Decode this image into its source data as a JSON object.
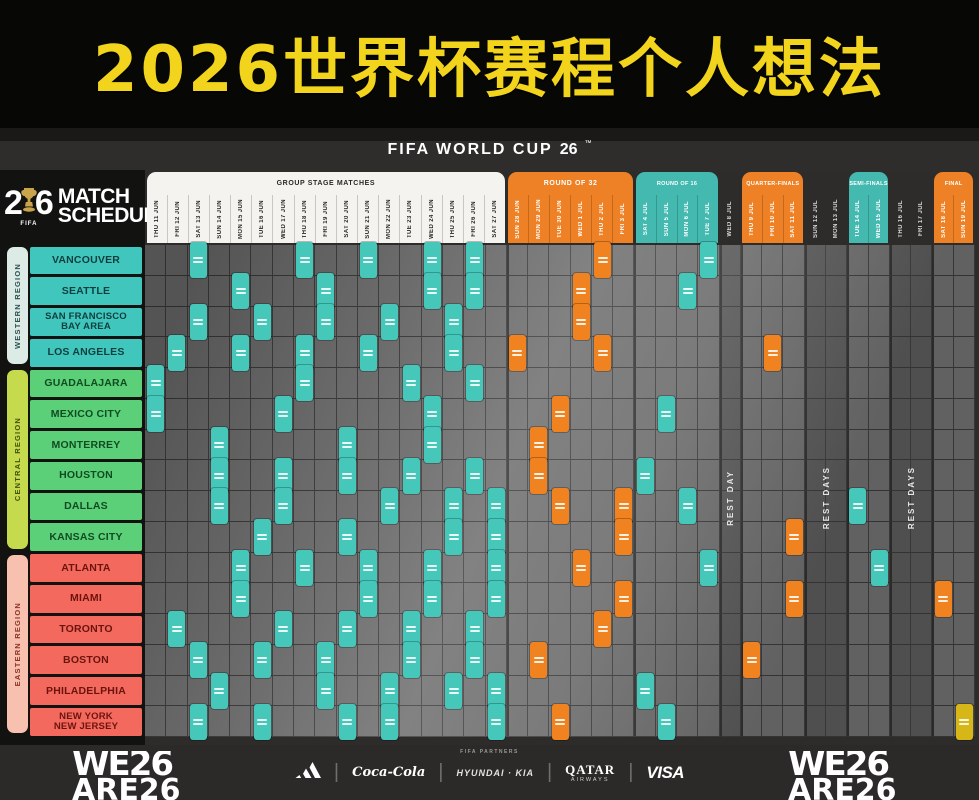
{
  "title": "2026世界杯赛程个人想法",
  "brand_bar": {
    "text": "FIFA WORLD CUP",
    "mark": "26",
    "tm": "™"
  },
  "sidebar_logo": {
    "digit_left": "2",
    "digit_right": "6",
    "fifa": "FIFA",
    "line1": "MATCH",
    "line2": "SCHEDULE"
  },
  "footer": {
    "partners_label": "FIFA PARTNERS",
    "we_left": "WE26",
    "we_left_sub": "ARE26",
    "we_right": "WE26",
    "we_right_sub": "ARE26",
    "sponsors": {
      "adidas": "adidas",
      "coke": "Coca-Cola",
      "hyundai": "HYUNDAI · KIA",
      "qatar": "QATAR",
      "qatar_sub": "AIRWAYS",
      "visa": "VISA"
    }
  },
  "chart_data": {
    "type": "table",
    "title": "2026世界杯赛程个人想法",
    "subtitle": "FIFA WORLD CUP 26 MATCH SCHEDULE",
    "grid": {
      "columns": 39,
      "rows": 16
    },
    "marker_colors": {
      "teal": "#45c7ba",
      "orange": "#f0821f",
      "gold": "#d7b717"
    },
    "phases": [
      {
        "id": "group",
        "label": "GROUP STAGE MATCHES",
        "color": "#f5f3ef",
        "text": "#2a2a2a",
        "rest": false,
        "dates": [
          "THU 11 JUN",
          "FRI 12 JUN",
          "SAT 13 JUN",
          "SUN 14 JUN",
          "MON 15 JUN",
          "TUE 16 JUN",
          "WED 17 JUN",
          "THU 18 JUN",
          "FRI 19 JUN",
          "SAT 20 JUN",
          "SUN 21 JUN",
          "MON 22 JUN",
          "TUE 23 JUN",
          "WED 24 JUN",
          "THU 25 JUN",
          "FRI 26 JUN",
          "SAT 27 JUN"
        ]
      },
      {
        "id": "r32",
        "label": "ROUND OF 32",
        "color": "#ee8125",
        "text": "#ffffff",
        "rest": false,
        "dates": [
          "SUN 28 JUN",
          "MON 29 JUN",
          "TUE 30 JUN",
          "WED 1 JUL",
          "THU 2 JUL",
          "FRI 3 JUL"
        ]
      },
      {
        "id": "r16",
        "label": "ROUND OF 16",
        "color": "#44b9b0",
        "text": "#ffffff",
        "rest": false,
        "dates": [
          "SAT 4 JUL",
          "SUN 5 JUL",
          "MON 6 JUL",
          "TUE 7 JUL"
        ]
      },
      {
        "id": "rest1",
        "label": "REST DAY",
        "color": "",
        "text": "#d8d8d8",
        "rest": true,
        "dates": [
          "WED 8 JUL"
        ]
      },
      {
        "id": "qf",
        "label": "QUARTER-FINALS",
        "color": "#ee8125",
        "text": "#ffffff",
        "rest": false,
        "dates": [
          "THU 9 JUL",
          "FRI 10 JUL",
          "SAT 11 JUL"
        ]
      },
      {
        "id": "rest2",
        "label": "REST DAYS",
        "color": "",
        "text": "#d8d8d8",
        "rest": true,
        "dates": [
          "SUN 12 JUL",
          "MON 13 JUL"
        ]
      },
      {
        "id": "sf",
        "label": "SEMI-FINALS",
        "color": "#44b9b0",
        "text": "#ffffff",
        "rest": false,
        "dates": [
          "TUE 14 JUL",
          "WED 15 JUL"
        ]
      },
      {
        "id": "rest3",
        "label": "REST DAYS",
        "color": "",
        "text": "#d8d8d8",
        "rest": true,
        "dates": [
          "THU 16 JUL",
          "FRI 17 JUL"
        ]
      },
      {
        "id": "final",
        "label": "FINAL",
        "color": "#ee8125",
        "text": "#ffffff",
        "rest": false,
        "dates": [
          "SAT 18 JUL",
          "SUN 19 JUL"
        ]
      }
    ],
    "regions": [
      {
        "name": "WESTERN REGION",
        "band_color": "#dcebe6",
        "band_text": "#2a5050",
        "city_color": "#41c6bd",
        "city_text": "#0e3f3e",
        "rows": 4
      },
      {
        "name": "CENTRAL REGION",
        "band_color": "#c6da4e",
        "band_text": "#42520a",
        "city_color": "#5bd078",
        "city_text": "#114b22",
        "rows": 6
      },
      {
        "name": "EASTERN REGION",
        "band_color": "#f8c0ae",
        "band_text": "#8a3325",
        "city_color": "#f3695e",
        "city_text": "#6b140d",
        "rows": 6
      }
    ],
    "rows": [
      {
        "city": "VANCOUVER",
        "region": 0,
        "matches": [
          {
            "col": 2,
            "color": "teal"
          },
          {
            "col": 7,
            "color": "teal"
          },
          {
            "col": 10,
            "color": "teal"
          },
          {
            "col": 13,
            "color": "teal"
          },
          {
            "col": 15,
            "color": "teal"
          },
          {
            "col": 21,
            "color": "orange"
          },
          {
            "col": 26,
            "color": "teal"
          }
        ]
      },
      {
        "city": "SEATTLE",
        "region": 0,
        "matches": [
          {
            "col": 4,
            "color": "teal"
          },
          {
            "col": 8,
            "color": "teal"
          },
          {
            "col": 13,
            "color": "teal"
          },
          {
            "col": 15,
            "color": "teal"
          },
          {
            "col": 20,
            "color": "orange"
          },
          {
            "col": 25,
            "color": "teal"
          }
        ]
      },
      {
        "city": "SAN FRANCISCO\nBAY AREA",
        "region": 0,
        "matches": [
          {
            "col": 2,
            "color": "teal"
          },
          {
            "col": 5,
            "color": "teal"
          },
          {
            "col": 8,
            "color": "teal"
          },
          {
            "col": 11,
            "color": "teal"
          },
          {
            "col": 14,
            "color": "teal"
          },
          {
            "col": 20,
            "color": "orange"
          }
        ]
      },
      {
        "city": "LOS ANGELES",
        "region": 0,
        "matches": [
          {
            "col": 1,
            "color": "teal"
          },
          {
            "col": 4,
            "color": "teal"
          },
          {
            "col": 7,
            "color": "teal"
          },
          {
            "col": 10,
            "color": "teal"
          },
          {
            "col": 14,
            "color": "teal"
          },
          {
            "col": 17,
            "color": "orange"
          },
          {
            "col": 21,
            "color": "orange"
          },
          {
            "col": 29,
            "color": "orange"
          }
        ]
      },
      {
        "city": "GUADALAJARA",
        "region": 1,
        "matches": [
          {
            "col": 0,
            "color": "teal"
          },
          {
            "col": 7,
            "color": "teal"
          },
          {
            "col": 12,
            "color": "teal"
          },
          {
            "col": 15,
            "color": "teal"
          }
        ]
      },
      {
        "city": "MEXICO CITY",
        "region": 1,
        "matches": [
          {
            "col": 0,
            "color": "teal"
          },
          {
            "col": 6,
            "color": "teal"
          },
          {
            "col": 13,
            "color": "teal"
          },
          {
            "col": 19,
            "color": "orange"
          },
          {
            "col": 24,
            "color": "teal"
          }
        ]
      },
      {
        "city": "MONTERREY",
        "region": 1,
        "matches": [
          {
            "col": 3,
            "color": "teal"
          },
          {
            "col": 9,
            "color": "teal"
          },
          {
            "col": 13,
            "color": "teal"
          },
          {
            "col": 18,
            "color": "orange"
          }
        ]
      },
      {
        "city": "HOUSTON",
        "region": 1,
        "matches": [
          {
            "col": 3,
            "color": "teal"
          },
          {
            "col": 6,
            "color": "teal"
          },
          {
            "col": 9,
            "color": "teal"
          },
          {
            "col": 12,
            "color": "teal"
          },
          {
            "col": 15,
            "color": "teal"
          },
          {
            "col": 18,
            "color": "orange"
          },
          {
            "col": 23,
            "color": "teal"
          }
        ]
      },
      {
        "city": "DALLAS",
        "region": 1,
        "matches": [
          {
            "col": 3,
            "color": "teal"
          },
          {
            "col": 6,
            "color": "teal"
          },
          {
            "col": 11,
            "color": "teal"
          },
          {
            "col": 14,
            "color": "teal"
          },
          {
            "col": 16,
            "color": "teal"
          },
          {
            "col": 19,
            "color": "orange"
          },
          {
            "col": 22,
            "color": "orange"
          },
          {
            "col": 25,
            "color": "teal"
          },
          {
            "col": 33,
            "color": "teal"
          }
        ]
      },
      {
        "city": "KANSAS CITY",
        "region": 1,
        "matches": [
          {
            "col": 5,
            "color": "teal"
          },
          {
            "col": 9,
            "color": "teal"
          },
          {
            "col": 14,
            "color": "teal"
          },
          {
            "col": 16,
            "color": "teal"
          },
          {
            "col": 22,
            "color": "orange"
          },
          {
            "col": 30,
            "color": "orange"
          }
        ]
      },
      {
        "city": "ATLANTA",
        "region": 2,
        "matches": [
          {
            "col": 4,
            "color": "teal"
          },
          {
            "col": 7,
            "color": "teal"
          },
          {
            "col": 10,
            "color": "teal"
          },
          {
            "col": 13,
            "color": "teal"
          },
          {
            "col": 16,
            "color": "teal"
          },
          {
            "col": 20,
            "color": "orange"
          },
          {
            "col": 26,
            "color": "teal"
          },
          {
            "col": 34,
            "color": "teal"
          }
        ]
      },
      {
        "city": "MIAMI",
        "region": 2,
        "matches": [
          {
            "col": 4,
            "color": "teal"
          },
          {
            "col": 10,
            "color": "teal"
          },
          {
            "col": 13,
            "color": "teal"
          },
          {
            "col": 16,
            "color": "teal"
          },
          {
            "col": 22,
            "color": "orange"
          },
          {
            "col": 30,
            "color": "orange"
          },
          {
            "col": 37,
            "color": "orange"
          }
        ]
      },
      {
        "city": "TORONTO",
        "region": 2,
        "matches": [
          {
            "col": 1,
            "color": "teal"
          },
          {
            "col": 6,
            "color": "teal"
          },
          {
            "col": 9,
            "color": "teal"
          },
          {
            "col": 12,
            "color": "teal"
          },
          {
            "col": 15,
            "color": "teal"
          },
          {
            "col": 21,
            "color": "orange"
          }
        ]
      },
      {
        "city": "BOSTON",
        "region": 2,
        "matches": [
          {
            "col": 2,
            "color": "teal"
          },
          {
            "col": 5,
            "color": "teal"
          },
          {
            "col": 8,
            "color": "teal"
          },
          {
            "col": 12,
            "color": "teal"
          },
          {
            "col": 15,
            "color": "teal"
          },
          {
            "col": 18,
            "color": "orange"
          },
          {
            "col": 28,
            "color": "orange"
          }
        ]
      },
      {
        "city": "PHILADELPHIA",
        "region": 2,
        "matches": [
          {
            "col": 3,
            "color": "teal"
          },
          {
            "col": 8,
            "color": "teal"
          },
          {
            "col": 11,
            "color": "teal"
          },
          {
            "col": 14,
            "color": "teal"
          },
          {
            "col": 16,
            "color": "teal"
          },
          {
            "col": 23,
            "color": "teal"
          }
        ]
      },
      {
        "city": "NEW YORK\nNEW JERSEY",
        "region": 2,
        "matches": [
          {
            "col": 2,
            "color": "teal"
          },
          {
            "col": 5,
            "color": "teal"
          },
          {
            "col": 9,
            "color": "teal"
          },
          {
            "col": 11,
            "color": "teal"
          },
          {
            "col": 16,
            "color": "teal"
          },
          {
            "col": 19,
            "color": "orange"
          },
          {
            "col": 24,
            "color": "teal"
          },
          {
            "col": 38,
            "color": "gold"
          }
        ]
      }
    ]
  }
}
